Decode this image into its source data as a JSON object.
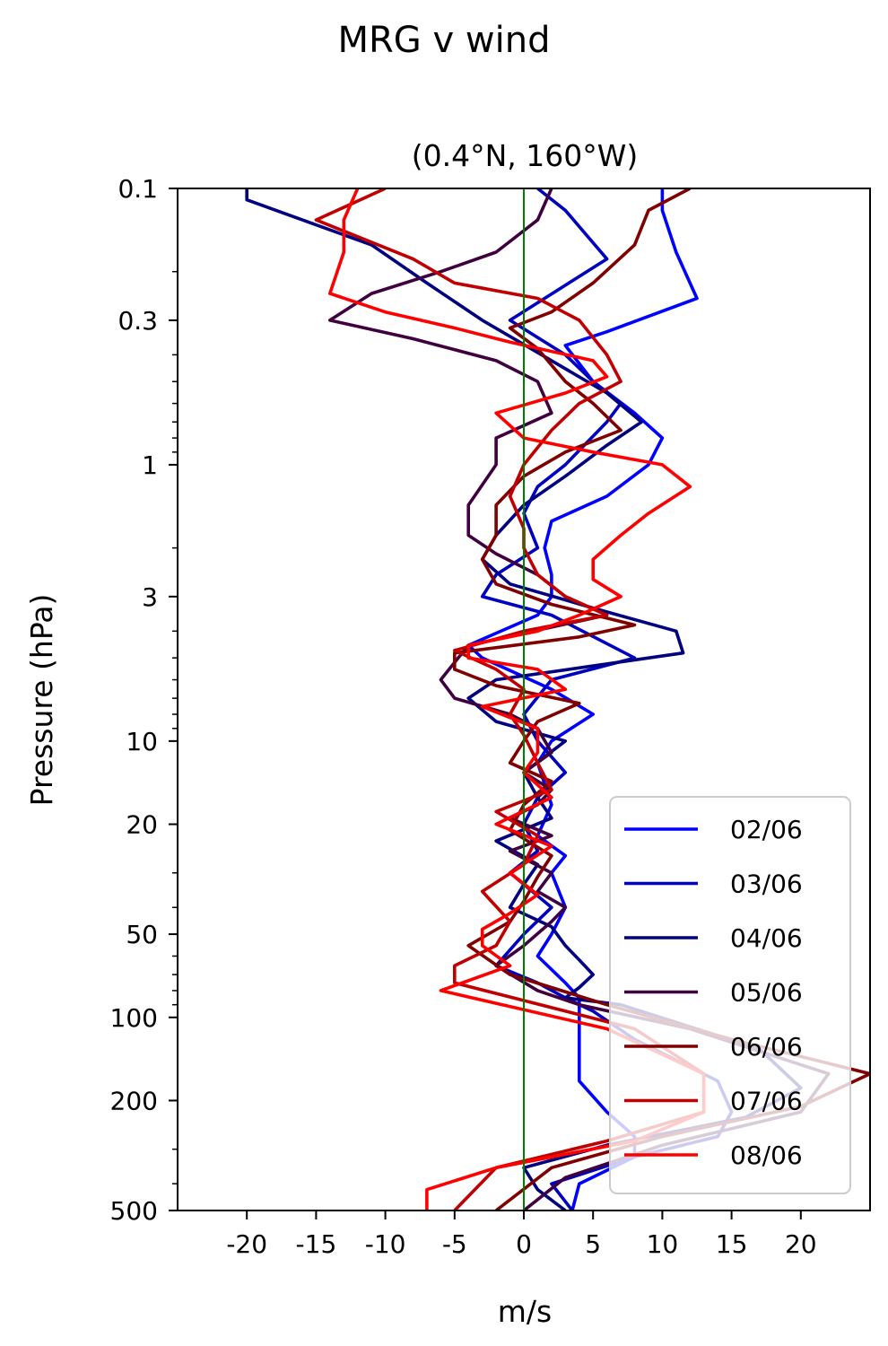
{
  "figure": {
    "suptitle": "MRG v wind"
  },
  "chart_data": {
    "type": "line",
    "title": "(0.4°N, 160°W)",
    "xlabel": "m/s",
    "ylabel": "Pressure (hPa)",
    "xlim": [
      -25,
      25
    ],
    "ylim": [
      500,
      0.1
    ],
    "yscale": "log",
    "xticks": [
      -20,
      -15,
      -10,
      -5,
      0,
      5,
      10,
      15,
      20
    ],
    "xtick_labels": [
      "-20",
      "-15",
      "-10",
      "-5",
      "0",
      "5",
      "10",
      "15",
      "20"
    ],
    "yticks": [
      0.1,
      0.3,
      1,
      3,
      10,
      20,
      50,
      100,
      200,
      500
    ],
    "ytick_labels": [
      "0.1",
      "0.3",
      "1",
      "3",
      "10",
      "20",
      "50",
      "100",
      "200",
      "500"
    ],
    "reference_line": {
      "x": 0,
      "color": "#008000"
    },
    "legend": {
      "position": "lower right"
    },
    "series": [
      {
        "name": "02/06",
        "color": "#0000ff",
        "x": [
          10,
          10,
          11,
          12.5,
          6,
          3,
          5,
          8,
          10,
          9,
          6,
          2,
          1.5,
          2,
          2,
          1,
          -4,
          -3,
          2,
          5,
          2,
          1,
          2,
          1,
          3,
          2,
          3,
          2,
          1,
          3,
          4,
          4,
          4,
          6,
          8,
          8,
          4,
          3.5
        ],
        "y": [
          0.1,
          0.12,
          0.17,
          0.25,
          0.33,
          0.37,
          0.5,
          0.65,
          0.8,
          1,
          1.3,
          1.6,
          2,
          2.5,
          3,
          3.5,
          4.5,
          5,
          6.5,
          8,
          10,
          12,
          17,
          22,
          26,
          30,
          40,
          50,
          60,
          75,
          85,
          120,
          170,
          220,
          270,
          320,
          400,
          500
        ]
      },
      {
        "name": "03/06",
        "color": "#0000c0",
        "x": [
          1,
          3,
          6,
          1.5,
          -1,
          3,
          5,
          7,
          6,
          3,
          1,
          0,
          1,
          -2,
          -3,
          2,
          8,
          2,
          0,
          1,
          3,
          1,
          0,
          1,
          -1,
          2,
          0,
          -2,
          1,
          3,
          5,
          8,
          14,
          15,
          14,
          8,
          2,
          3.5
        ],
        "y": [
          0.1,
          0.12,
          0.18,
          0.25,
          0.3,
          0.4,
          0.5,
          0.6,
          0.7,
          1,
          1.2,
          1.5,
          2,
          2.5,
          3,
          3.5,
          5,
          6,
          8,
          10,
          13,
          16,
          20,
          25,
          30,
          40,
          50,
          65,
          75,
          85,
          95,
          120,
          170,
          220,
          270,
          320,
          400,
          500
        ]
      },
      {
        "name": "04/06",
        "color": "#000080",
        "x": [
          -20,
          -20,
          -11,
          -7,
          -3,
          2,
          6,
          8.5,
          6,
          3,
          0,
          -2,
          -3,
          -1,
          5,
          11,
          11.5,
          -2,
          -4,
          -2,
          3,
          0,
          1,
          2,
          -2,
          1,
          0,
          -1,
          2,
          3,
          4,
          5,
          4,
          3,
          7,
          17,
          20,
          16,
          6,
          0,
          1,
          3
        ],
        "y": [
          0.1,
          0.11,
          0.16,
          0.22,
          0.3,
          0.42,
          0.55,
          0.7,
          0.85,
          1.1,
          1.4,
          1.8,
          2.2,
          2.7,
          3.3,
          4,
          4.8,
          6,
          7,
          8.5,
          10,
          13,
          16,
          19,
          23,
          28,
          33,
          40,
          47,
          55,
          62,
          70,
          78,
          85,
          90,
          130,
          180,
          230,
          290,
          350,
          420,
          500
        ]
      },
      {
        "name": "05/06",
        "color": "#400040",
        "x": [
          2,
          1,
          -2,
          -6,
          -11,
          -14,
          -8,
          -2,
          1,
          2,
          -2,
          -2,
          -4,
          -4,
          -2,
          1,
          3,
          6,
          -4,
          -6,
          -5,
          -1,
          1,
          2,
          0,
          2,
          1,
          -1,
          2,
          -1,
          2,
          1,
          3,
          2,
          0,
          -2,
          1,
          4,
          12,
          22,
          20,
          10,
          3,
          0
        ],
        "y": [
          0.1,
          0.13,
          0.17,
          0.2,
          0.24,
          0.3,
          0.35,
          0.42,
          0.5,
          0.65,
          0.8,
          1,
          1.4,
          1.8,
          2.1,
          2.5,
          3,
          3.5,
          4.5,
          6,
          7,
          8,
          9,
          11,
          13,
          15,
          17,
          19,
          22,
          25,
          30,
          35,
          40,
          45,
          55,
          65,
          80,
          90,
          110,
          160,
          220,
          290,
          380,
          500
        ]
      },
      {
        "name": "06/06",
        "color": "#800000",
        "x": [
          12,
          9,
          8,
          5,
          2,
          -1,
          1,
          3,
          5,
          7,
          3,
          0,
          -2,
          -2,
          -3,
          -2,
          2,
          8,
          4,
          -5,
          -5,
          -2,
          4,
          1,
          0,
          -1,
          2,
          0,
          -1,
          2,
          1,
          0,
          -1,
          -4,
          -1,
          6,
          15,
          25,
          20,
          10,
          2,
          -2
        ],
        "y": [
          0.1,
          0.12,
          0.16,
          0.22,
          0.28,
          0.32,
          0.38,
          0.5,
          0.6,
          0.75,
          0.9,
          1.1,
          1.4,
          1.8,
          2.2,
          2.7,
          3.2,
          3.8,
          4.2,
          4.8,
          5.5,
          6.3,
          7.3,
          8.5,
          10,
          12,
          14,
          17,
          21,
          26,
          31,
          38,
          45,
          55,
          70,
          90,
          120,
          160,
          210,
          270,
          350,
          500
        ]
      },
      {
        "name": "07/06",
        "color": "#c00000",
        "x": [
          -10,
          -15,
          -8,
          -5,
          1,
          4,
          6,
          7,
          4,
          2,
          0,
          -1,
          0,
          0,
          1,
          3,
          6,
          0,
          -5,
          -2,
          0,
          -1,
          0,
          1,
          2,
          -2,
          1,
          0,
          -3,
          -1,
          -2,
          -5,
          -5,
          8,
          13,
          13,
          6,
          -2,
          -5
        ],
        "y": [
          0.1,
          0.13,
          0.18,
          0.22,
          0.25,
          0.3,
          0.4,
          0.5,
          0.6,
          0.75,
          1,
          1.3,
          1.7,
          2,
          2.5,
          3,
          3.5,
          4,
          4.7,
          5.5,
          6.5,
          8,
          9.5,
          12,
          15,
          18,
          22,
          28,
          35,
          45,
          55,
          65,
          75,
          110,
          160,
          220,
          280,
          350,
          500
        ]
      },
      {
        "name": "08/06",
        "color": "#ff0000",
        "x": [
          -12,
          -13,
          -13,
          -14,
          -10,
          -5,
          -1,
          5,
          6,
          3,
          -2,
          0,
          5,
          10,
          12,
          9,
          7,
          5,
          5,
          7,
          4,
          1,
          -4,
          -4,
          1,
          3,
          -3,
          1,
          1,
          0,
          2,
          -2,
          2,
          -1,
          1,
          -1,
          -3,
          -3,
          -1,
          -6,
          6,
          13,
          13,
          8,
          -2,
          -7,
          -7
        ],
        "y": [
          0.1,
          0.13,
          0.17,
          0.24,
          0.28,
          0.32,
          0.36,
          0.42,
          0.48,
          0.55,
          0.65,
          0.8,
          0.9,
          1,
          1.2,
          1.5,
          1.8,
          2.2,
          2.6,
          3,
          3.5,
          4,
          4.5,
          5,
          5.5,
          6.5,
          7.5,
          9,
          11,
          13,
          16,
          20,
          24,
          30,
          36,
          42,
          48,
          55,
          65,
          80,
          110,
          160,
          220,
          280,
          350,
          420,
          500
        ]
      }
    ]
  }
}
